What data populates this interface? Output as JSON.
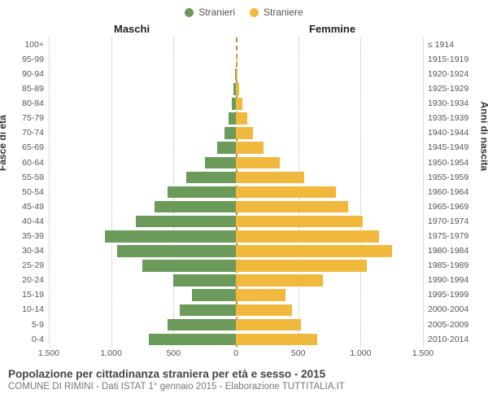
{
  "chart": {
    "type": "population-pyramid",
    "legend": {
      "male_label": "Stranieri",
      "female_label": "Straniere",
      "male_color": "#6b9a5b",
      "female_color": "#f0b93e"
    },
    "column_headers": {
      "male": "Maschi",
      "female": "Femmine"
    },
    "y_left_title": "Fasce di età",
    "y_right_title": "Anni di nascita",
    "age_bands": [
      "100+",
      "95-99",
      "90-94",
      "85-89",
      "80-84",
      "75-79",
      "70-74",
      "65-69",
      "60-64",
      "55-59",
      "50-54",
      "45-49",
      "40-44",
      "35-39",
      "30-34",
      "25-29",
      "20-24",
      "15-19",
      "10-14",
      "5-9",
      "0-4"
    ],
    "birth_bands": [
      "≤ 1914",
      "1915-1919",
      "1920-1924",
      "1925-1929",
      "1930-1934",
      "1935-1939",
      "1940-1944",
      "1945-1949",
      "1950-1954",
      "1955-1959",
      "1960-1964",
      "1965-1969",
      "1970-1974",
      "1975-1979",
      "1980-1984",
      "1985-1989",
      "1990-1994",
      "1995-1999",
      "2000-2004",
      "2005-2009",
      "2010-2014"
    ],
    "male_values": [
      0,
      0,
      5,
      20,
      30,
      60,
      90,
      150,
      250,
      400,
      550,
      650,
      800,
      1050,
      950,
      750,
      500,
      350,
      450,
      550,
      700
    ],
    "female_values": [
      0,
      5,
      10,
      25,
      50,
      90,
      140,
      220,
      350,
      550,
      800,
      900,
      1020,
      1150,
      1250,
      1050,
      700,
      400,
      450,
      520,
      650
    ],
    "x_max": 1500,
    "x_ticks": [
      1500,
      1000,
      500,
      0,
      500,
      1000,
      1500
    ],
    "x_tick_labels": [
      "1.500",
      "1.000",
      "500",
      "0",
      "500",
      "1.000",
      "1.500"
    ],
    "grid_color": "#bbbbbb",
    "center_line_color": "#b58d3d",
    "background_color": "#ffffff",
    "tick_fontsize": 10.5,
    "axis_title_fontsize": 12
  },
  "footer": {
    "title": "Popolazione per cittadinanza straniera per età e sesso - 2015",
    "subtitle": "COMUNE DI RIMINI - Dati ISTAT 1° gennaio 2015 - Elaborazione TUTTITALIA.IT"
  }
}
